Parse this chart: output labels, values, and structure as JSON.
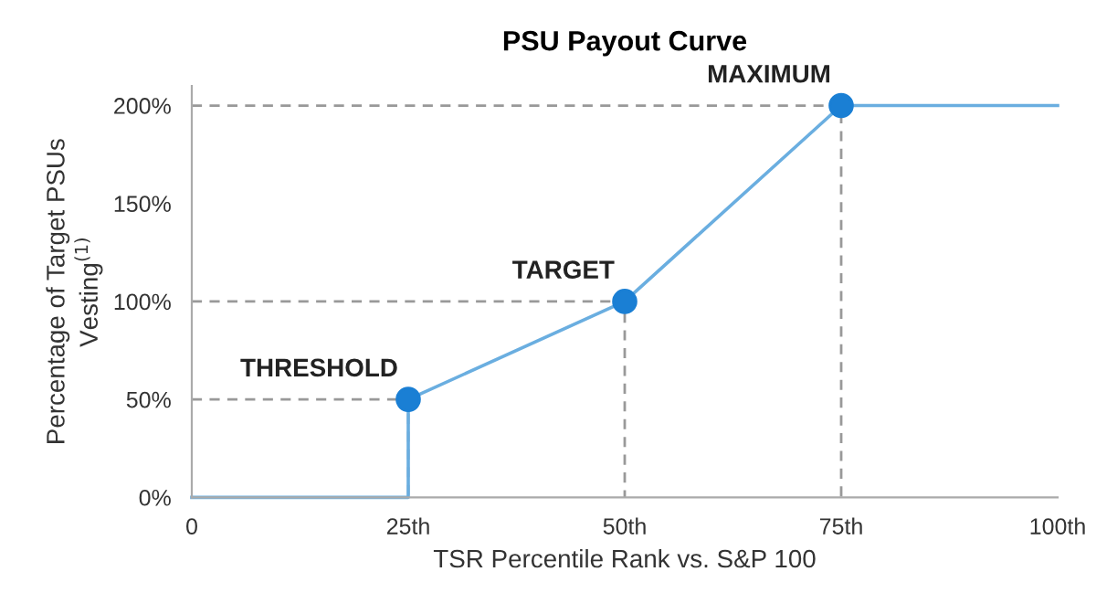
{
  "chart_data": {
    "type": "line",
    "title": "PSU Payout Curve",
    "xlabel": "TSR Percentile Rank vs. S&P 100",
    "ylabel": "Percentage of Target PSUs\nVesting$^{(1)}$",
    "xlim": [
      0,
      100
    ],
    "ylim": [
      0,
      210
    ],
    "xticks": [
      0,
      {
        "value": 25,
        "label": "25th"
      },
      {
        "value": 50,
        "label": "50th"
      },
      {
        "value": 75,
        "label": "75th"
      },
      {
        "value": 100,
        "label": "100th"
      }
    ],
    "yticks": [
      {
        "value": 0,
        "label": "0%"
      },
      {
        "value": 50,
        "label": "50%"
      },
      {
        "value": 100,
        "label": "100%"
      },
      {
        "value": 150,
        "label": "150%"
      },
      {
        "value": 200,
        "label": "200%"
      }
    ],
    "grid": false,
    "legend": false,
    "series": [
      {
        "type": "line",
        "line_style": "dashed",
        "color": "#999999",
        "x": [
          0,
          25,
          25
        ],
        "values": [
          50,
          50,
          0
        ]
      },
      {
        "type": "line",
        "line_style": "dashed",
        "color": "#999999",
        "x": [
          0,
          50,
          50
        ],
        "values": [
          100,
          100,
          0
        ]
      },
      {
        "type": "line",
        "line_style": "dashed",
        "color": "#999999",
        "x": [
          0,
          75,
          75
        ],
        "values": [
          200,
          200,
          0
        ]
      },
      {
        "line_style": "solid",
        "color": "#6aaee0",
        "x": [
          0,
          25,
          25,
          50,
          75,
          100
        ],
        "values": [
          0,
          0,
          50,
          100,
          200,
          200
        ]
      },
      {
        "type": "scatter",
        "marker": "circle",
        "color": "#1a7fd4",
        "x": [
          25,
          50,
          75
        ],
        "values": [
          50,
          100,
          200
        ]
      }
    ],
    "annotations": [
      {
        "text": "THRESHOLD",
        "x": 25,
        "y": 50
      },
      {
        "text": "TARGET",
        "x": 50,
        "y": 100
      },
      {
        "text": "MAXIMUM",
        "x": 75,
        "y": 200
      }
    ]
  }
}
